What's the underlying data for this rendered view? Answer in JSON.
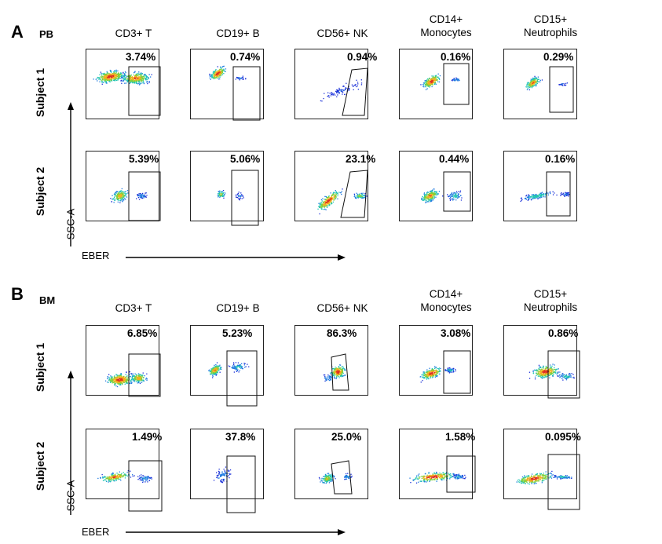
{
  "panels": [
    {
      "letter": "A",
      "tissue": "PB",
      "columns": [
        "CD3+ T",
        "CD19+ B",
        "CD56+ NK",
        "CD14+\nMonocytes",
        "CD15+\nNeutrophils"
      ],
      "rows": [
        {
          "label": "Subject 1",
          "values": [
            "3.74%",
            "0.74%",
            "0.94%",
            "0.16%",
            "0.29%"
          ]
        },
        {
          "label": "Subject 2",
          "values": [
            "5.39%",
            "5.06%",
            "23.1%",
            "0.44%",
            "0.16%"
          ]
        }
      ],
      "y_axis": "SSC-A",
      "x_axis": "EBER"
    },
    {
      "letter": "B",
      "tissue": "BM",
      "columns": [
        "CD3+ T",
        "CD19+ B",
        "CD56+ NK",
        "CD14+\nMonocytes",
        "CD15+\nNeutrophils"
      ],
      "rows": [
        {
          "label": "Subject 1",
          "values": [
            "6.85%",
            "5.23%",
            "86.3%",
            "3.08%",
            "0.86%"
          ]
        },
        {
          "label": "Subject 2",
          "values": [
            "1.49%",
            "37.8%",
            "25.0%",
            "1.58%",
            "0.095%"
          ]
        }
      ],
      "y_axis": "SSC-A",
      "x_axis": "EBER"
    }
  ]
}
